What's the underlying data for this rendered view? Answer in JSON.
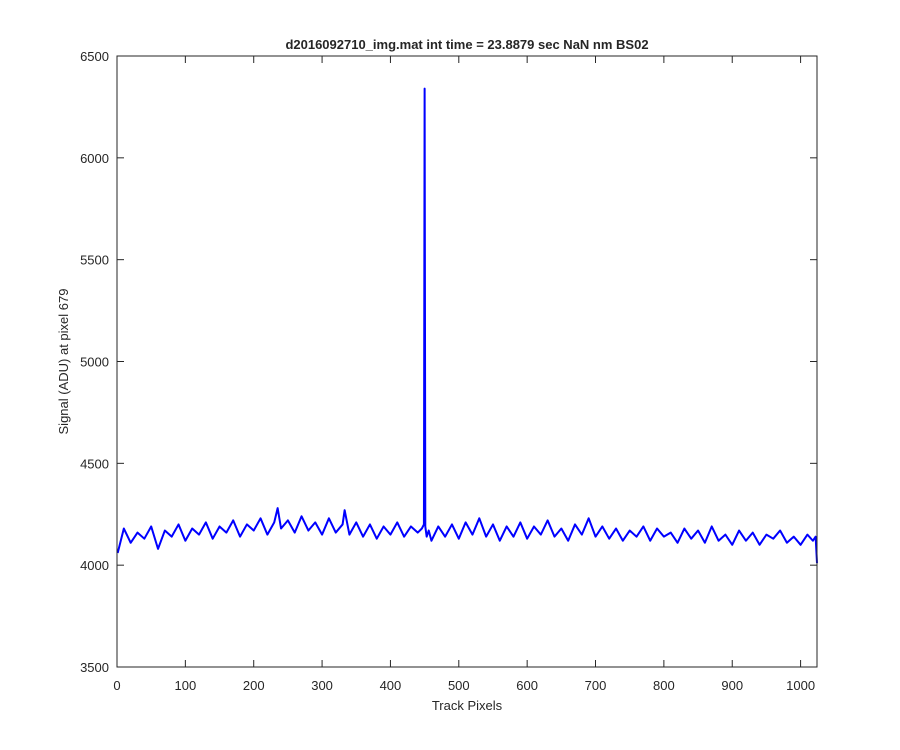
{
  "chart_data": {
    "type": "line",
    "title": "d2016092710_img.mat int time = 23.8879 sec  NaN nm BS02",
    "xlabel": "Track Pixels",
    "ylabel": "Signal (ADU) at pixel 679",
    "xlim": [
      0,
      1024
    ],
    "ylim": [
      3500,
      6500
    ],
    "xticks": [
      0,
      100,
      200,
      300,
      400,
      500,
      600,
      700,
      800,
      900,
      1000
    ],
    "yticks": [
      3500,
      4000,
      4500,
      5000,
      5500,
      6000,
      6500
    ],
    "grid": false,
    "legend": "none",
    "series": [
      {
        "color": "#0000ff",
        "x": [
          1,
          10,
          20,
          30,
          40,
          50,
          60,
          70,
          80,
          90,
          100,
          110,
          120,
          130,
          140,
          150,
          160,
          170,
          180,
          190,
          200,
          210,
          220,
          230,
          235,
          240,
          250,
          260,
          270,
          280,
          290,
          300,
          310,
          320,
          330,
          333,
          340,
          350,
          360,
          370,
          380,
          390,
          400,
          410,
          420,
          430,
          440,
          446,
          449,
          450,
          451,
          453,
          456,
          460,
          470,
          480,
          490,
          500,
          510,
          520,
          530,
          540,
          550,
          560,
          570,
          580,
          590,
          600,
          610,
          620,
          630,
          640,
          650,
          660,
          670,
          680,
          690,
          700,
          710,
          720,
          730,
          740,
          750,
          760,
          770,
          780,
          790,
          800,
          810,
          820,
          830,
          840,
          850,
          860,
          870,
          880,
          890,
          900,
          910,
          920,
          930,
          940,
          950,
          960,
          970,
          980,
          990,
          1000,
          1010,
          1018,
          1022,
          1024
        ],
        "y": [
          4060,
          4180,
          4110,
          4160,
          4130,
          4190,
          4080,
          4170,
          4140,
          4200,
          4120,
          4180,
          4150,
          4210,
          4130,
          4190,
          4160,
          4220,
          4140,
          4200,
          4170,
          4230,
          4150,
          4210,
          4280,
          4180,
          4220,
          4160,
          4240,
          4170,
          4210,
          4150,
          4230,
          4160,
          4200,
          4270,
          4150,
          4210,
          4140,
          4200,
          4130,
          4190,
          4150,
          4210,
          4140,
          4190,
          4160,
          4180,
          4200,
          6340,
          4190,
          4140,
          4170,
          4120,
          4190,
          4140,
          4200,
          4130,
          4210,
          4150,
          4230,
          4140,
          4200,
          4120,
          4190,
          4140,
          4210,
          4130,
          4190,
          4150,
          4220,
          4140,
          4180,
          4120,
          4200,
          4150,
          4230,
          4140,
          4190,
          4130,
          4180,
          4120,
          4170,
          4140,
          4190,
          4120,
          4180,
          4140,
          4160,
          4110,
          4180,
          4130,
          4170,
          4110,
          4190,
          4120,
          4150,
          4100,
          4170,
          4120,
          4160,
          4100,
          4150,
          4130,
          4170,
          4110,
          4140,
          4100,
          4150,
          4120,
          4140,
          4010
        ]
      }
    ]
  }
}
